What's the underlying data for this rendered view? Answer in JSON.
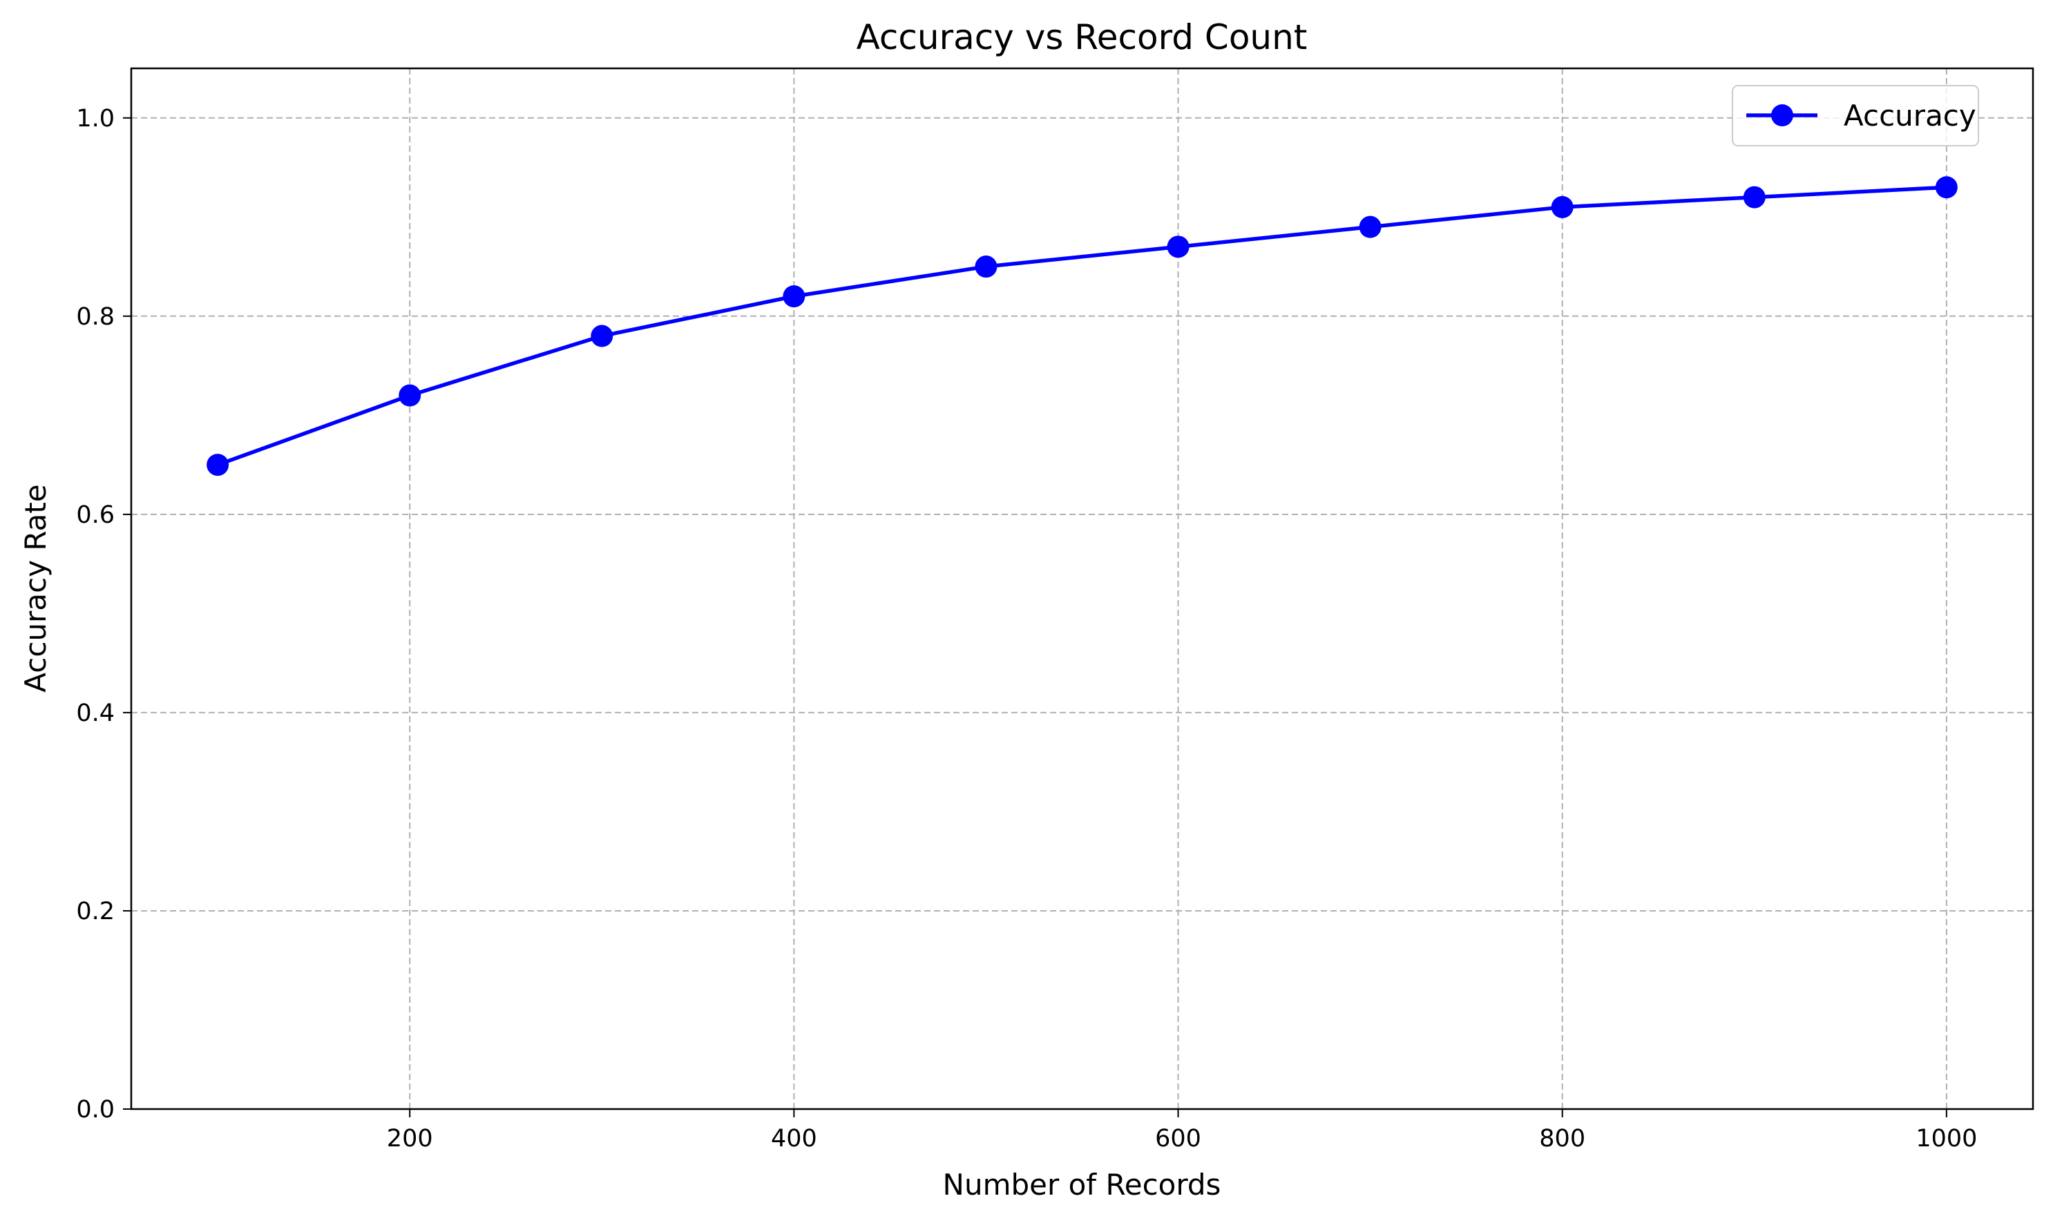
{
  "chart_data": {
    "type": "line",
    "title": "Accuracy vs Record Count",
    "xlabel": "Number of Records",
    "ylabel": "Accuracy Rate",
    "x": [
      100,
      200,
      300,
      400,
      500,
      600,
      700,
      800,
      900,
      1000
    ],
    "series": [
      {
        "name": "Accuracy",
        "values": [
          0.65,
          0.72,
          0.78,
          0.82,
          0.85,
          0.87,
          0.89,
          0.91,
          0.92,
          0.93
        ],
        "color": "#0000ff",
        "marker": "circle"
      }
    ],
    "xlim": [
      55,
      1045
    ],
    "ylim": [
      0.0,
      1.05
    ],
    "xticks": [
      200,
      400,
      600,
      800,
      1000
    ],
    "xtick_labels": [
      "200",
      "400",
      "600",
      "800",
      "1000"
    ],
    "yticks": [
      0.0,
      0.2,
      0.4,
      0.6,
      0.8,
      1.0
    ],
    "ytick_labels": [
      "0.0",
      "0.2",
      "0.4",
      "0.6",
      "0.8",
      "1.0"
    ],
    "grid": true,
    "legend": {
      "position": "top-right",
      "entries": [
        "Accuracy"
      ]
    }
  }
}
